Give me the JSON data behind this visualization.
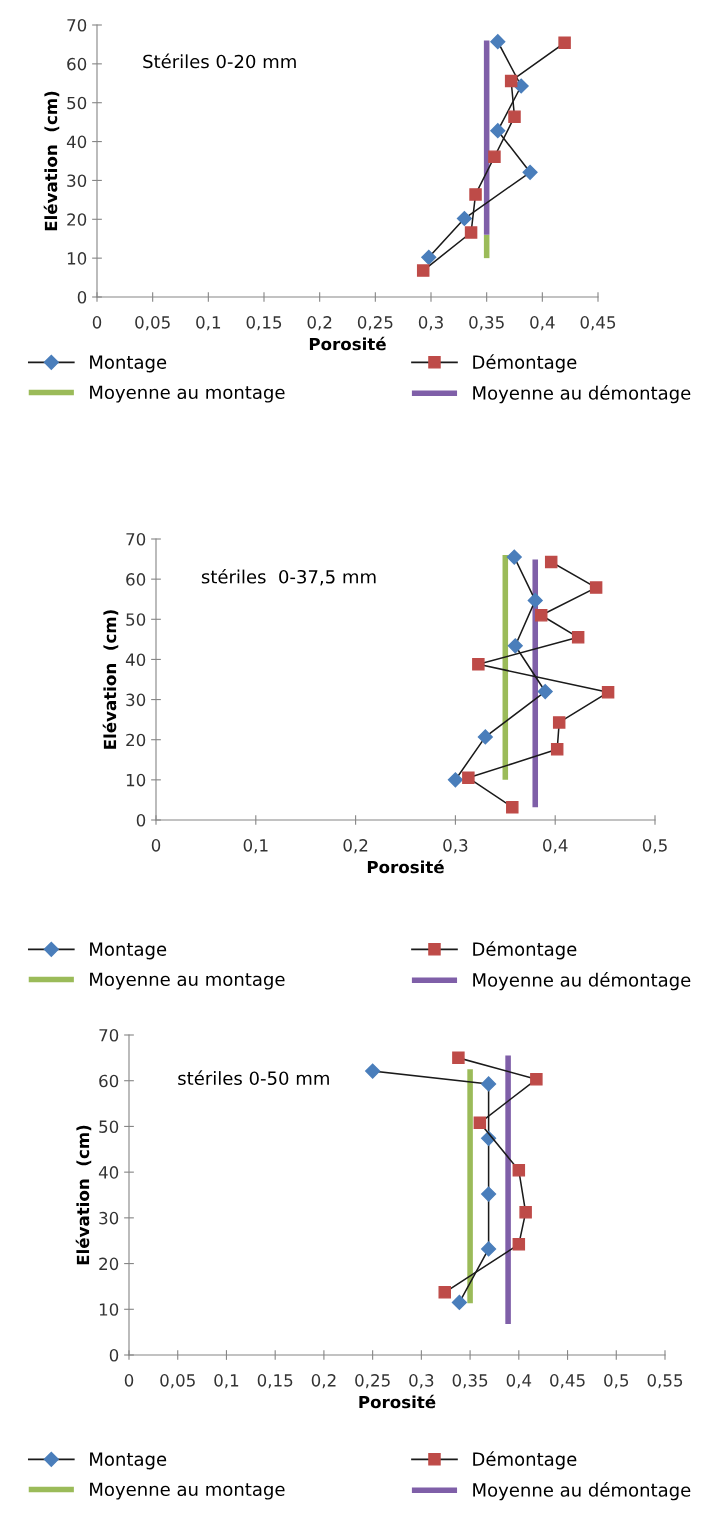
{
  "chart_data": [
    {
      "type": "line",
      "title": "Stériles 0-20 mm",
      "xlabel": "Porosité",
      "ylabel": "Elévation  (cm)",
      "xlim": [
        0,
        0.45
      ],
      "ylim": [
        0,
        70
      ],
      "xticks": [
        {
          "value": 0,
          "label": "0"
        },
        {
          "value": 0.05,
          "label": "0,05"
        },
        {
          "value": 0.1,
          "label": "0,1"
        },
        {
          "value": 0.15,
          "label": "0,15"
        },
        {
          "value": 0.2,
          "label": "0,2"
        },
        {
          "value": 0.25,
          "label": "0,25"
        },
        {
          "value": 0.3,
          "label": "0,3"
        },
        {
          "value": 0.35,
          "label": "0,35"
        },
        {
          "value": 0.4,
          "label": "0,4"
        },
        {
          "value": 0.45,
          "label": "0,45"
        }
      ],
      "yticks": [
        0,
        10,
        20,
        30,
        40,
        50,
        60,
        70
      ],
      "grid": false,
      "legend": "bottom",
      "series": [
        {
          "name": "Montage",
          "color": "#4a7ebb",
          "marker": "diamond",
          "x": [
            0.36,
            0.381,
            0.36,
            0.389,
            0.33,
            0.298
          ],
          "values": [
            65.7,
            54.3,
            42.8,
            32.1,
            20.2,
            10.2
          ]
        },
        {
          "name": "Démontage",
          "color": "#be4b48",
          "marker": "square",
          "x": [
            0.42,
            0.372,
            0.375,
            0.357,
            0.34,
            0.336,
            0.293
          ],
          "values": [
            65.4,
            55.6,
            46.4,
            36.1,
            26.4,
            16.6,
            6.8
          ]
        },
        {
          "name": "Moyenne au montage",
          "color": "#9bbb59",
          "marker": "none",
          "x": [
            0.35,
            0.35
          ],
          "values": [
            10,
            16
          ]
        },
        {
          "name": "Moyenne au démontage",
          "color": "#7f5fa8",
          "marker": "none",
          "x": [
            0.35,
            0.35
          ],
          "values": [
            16,
            66
          ]
        }
      ]
    },
    {
      "type": "line",
      "title": "stériles  0-37,5 mm",
      "xlabel": "Porosité",
      "ylabel": "Elévation  (cm)",
      "xlim": [
        0,
        0.5
      ],
      "ylim": [
        0,
        70
      ],
      "xticks": [
        {
          "value": 0,
          "label": "0"
        },
        {
          "value": 0.1,
          "label": "0,1"
        },
        {
          "value": 0.2,
          "label": "0,2"
        },
        {
          "value": 0.3,
          "label": "0,3"
        },
        {
          "value": 0.4,
          "label": "0,4"
        },
        {
          "value": 0.5,
          "label": "0,5"
        }
      ],
      "yticks": [
        0,
        10,
        20,
        30,
        40,
        50,
        60,
        70
      ],
      "grid": false,
      "legend": "bottom",
      "series": [
        {
          "name": "Montage",
          "color": "#4a7ebb",
          "marker": "diamond",
          "x": [
            0.359,
            0.38,
            0.36,
            0.39,
            0.33,
            0.3
          ],
          "values": [
            65.5,
            54.7,
            43.4,
            32.0,
            20.7,
            10.0
          ]
        },
        {
          "name": "Démontage",
          "color": "#be4b48",
          "marker": "square",
          "x": [
            0.396,
            0.441,
            0.386,
            0.423,
            0.323,
            0.453,
            0.404,
            0.402,
            0.313,
            0.357
          ],
          "values": [
            64.3,
            57.9,
            51.0,
            45.5,
            38.8,
            31.8,
            24.3,
            17.6,
            10.5,
            3.2
          ]
        },
        {
          "name": "Moyenne au montage",
          "color": "#9bbb59",
          "marker": "none",
          "x": [
            0.35,
            0.35
          ],
          "values": [
            10.0,
            66.0
          ]
        },
        {
          "name": "Moyenne au démontage",
          "color": "#7f5fa8",
          "marker": "none",
          "x": [
            0.38,
            0.38
          ],
          "values": [
            3.2,
            64.9
          ]
        }
      ]
    },
    {
      "type": "line",
      "title": "stériles 0-50 mm",
      "xlabel": "Porosité",
      "ylabel": "Elévation  (cm)",
      "xlim": [
        0,
        0.55
      ],
      "ylim": [
        0,
        70
      ],
      "xticks": [
        {
          "value": 0,
          "label": "0"
        },
        {
          "value": 0.05,
          "label": "0,05"
        },
        {
          "value": 0.1,
          "label": "0,1"
        },
        {
          "value": 0.15,
          "label": "0,15"
        },
        {
          "value": 0.2,
          "label": "0,2"
        },
        {
          "value": 0.25,
          "label": "0,25"
        },
        {
          "value": 0.3,
          "label": "0,3"
        },
        {
          "value": 0.35,
          "label": "0,35"
        },
        {
          "value": 0.4,
          "label": "0,4"
        },
        {
          "value": 0.45,
          "label": "0,45"
        },
        {
          "value": 0.5,
          "label": "0,5"
        },
        {
          "value": 0.55,
          "label": "0,55"
        }
      ],
      "yticks": [
        0,
        10,
        20,
        30,
        40,
        50,
        60,
        70
      ],
      "grid": false,
      "legend": "bottom",
      "series": [
        {
          "name": "Montage",
          "color": "#4a7ebb",
          "marker": "diamond",
          "x": [
            0.25,
            0.369,
            0.369,
            0.369,
            0.369,
            0.339
          ],
          "values": [
            62.1,
            59.3,
            47.4,
            35.2,
            23.2,
            11.5
          ]
        },
        {
          "name": "Démontage",
          "color": "#be4b48",
          "marker": "square",
          "x": [
            0.338,
            0.418,
            0.36,
            0.4,
            0.407,
            0.4,
            0.324
          ],
          "values": [
            65.0,
            60.3,
            50.8,
            40.4,
            31.2,
            24.2,
            13.7
          ]
        },
        {
          "name": "Moyenne au montage",
          "color": "#9bbb59",
          "marker": "none",
          "x": [
            0.35,
            0.35
          ],
          "values": [
            11.3,
            62.5
          ]
        },
        {
          "name": "Moyenne au démontage",
          "color": "#7f5fa8",
          "marker": "none",
          "x": [
            0.389,
            0.389
          ],
          "values": [
            6.8,
            65.5
          ]
        }
      ]
    }
  ]
}
